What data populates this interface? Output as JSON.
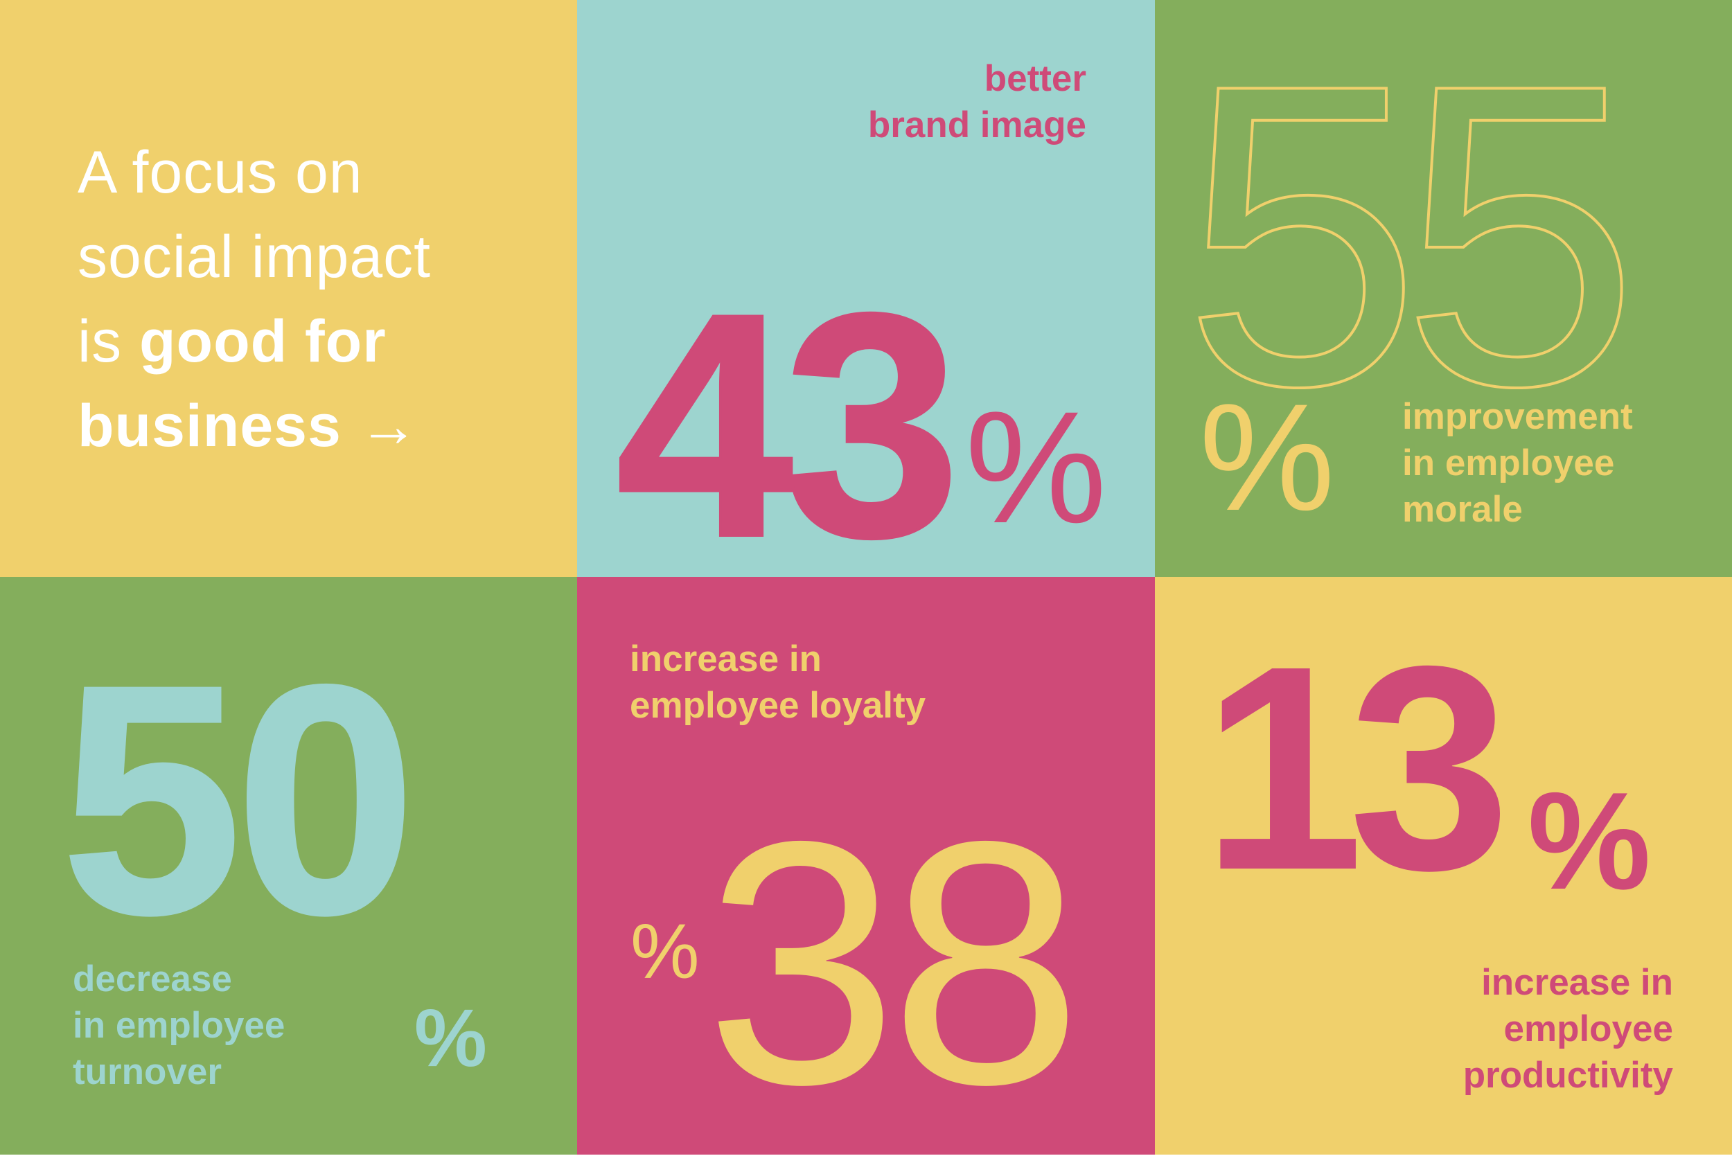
{
  "intro": {
    "line1": "A focus on",
    "line2": "social impact",
    "line3_plain": "is ",
    "line3_bold": "good for",
    "line4_bold": "business",
    "arrow": "→"
  },
  "stats": [
    {
      "value": "43",
      "unit": "%",
      "label_lines": [
        "better",
        "brand image"
      ],
      "color": "#cf4a78",
      "background": "#9dd4cf"
    },
    {
      "value": "55",
      "unit": "%",
      "label_lines": [
        "improvement",
        "in employee",
        "morale"
      ],
      "color": "#f0d06c",
      "background": "#84ae5c"
    },
    {
      "value": "50",
      "unit": "%",
      "label_lines": [
        "decrease",
        "in employee",
        "turnover"
      ],
      "color": "#9dd4cf",
      "background": "#84ae5c"
    },
    {
      "value": "38",
      "unit": "%",
      "label_lines": [
        "increase in",
        "employee loyalty"
      ],
      "color": "#f0d06c",
      "background": "#cf4a78"
    },
    {
      "value": "13",
      "unit": "%",
      "label_lines": [
        "increase in",
        "employee",
        "productivity"
      ],
      "color": "#cf4a78",
      "background": "#f0d06c"
    }
  ],
  "colors": {
    "yellow": "#f0d06c",
    "teal": "#9dd4cf",
    "green": "#84ae5c",
    "pink": "#cf4a78",
    "white": "#ffffff"
  }
}
